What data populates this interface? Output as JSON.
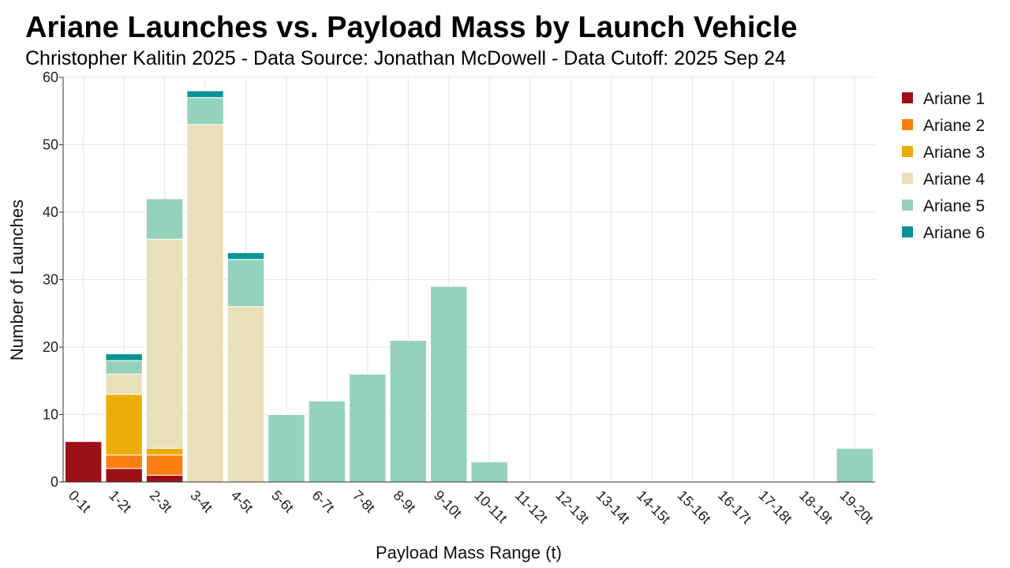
{
  "chart_data": {
    "type": "bar",
    "stacked": true,
    "title": "Ariane Launches vs. Payload Mass by Launch Vehicle",
    "subtitle": "Christopher Kalitin 2025 - Data Source: Jonathan McDowell - Data Cutoff: 2025 Sep 24",
    "xlabel": "Payload Mass Range (t)",
    "ylabel": "Number of Launches",
    "ylim": [
      0,
      60
    ],
    "yticks": [
      0,
      10,
      20,
      30,
      40,
      50,
      60
    ],
    "grid": true,
    "legend_position": "right",
    "categories": [
      "0-1t",
      "1-2t",
      "2-3t",
      "3-4t",
      "4-5t",
      "5-6t",
      "6-7t",
      "7-8t",
      "8-9t",
      "9-10t",
      "10-11t",
      "11-12t",
      "12-13t",
      "13-14t",
      "14-15t",
      "15-16t",
      "16-17t",
      "17-18t",
      "18-19t",
      "19-20t"
    ],
    "series": [
      {
        "name": "Ariane 1",
        "color": "#9b1014",
        "values": [
          6,
          2,
          1,
          0,
          0,
          0,
          0,
          0,
          0,
          0,
          0,
          0,
          0,
          0,
          0,
          0,
          0,
          0,
          0,
          0
        ]
      },
      {
        "name": "Ariane 2",
        "color": "#fb7e12",
        "values": [
          0,
          2,
          3,
          0,
          0,
          0,
          0,
          0,
          0,
          0,
          0,
          0,
          0,
          0,
          0,
          0,
          0,
          0,
          0,
          0
        ]
      },
      {
        "name": "Ariane 3",
        "color": "#edad08",
        "values": [
          0,
          9,
          1,
          0,
          0,
          0,
          0,
          0,
          0,
          0,
          0,
          0,
          0,
          0,
          0,
          0,
          0,
          0,
          0,
          0
        ]
      },
      {
        "name": "Ariane 4",
        "color": "#e9dfb8",
        "values": [
          0,
          3,
          31,
          53,
          26,
          0,
          0,
          0,
          0,
          0,
          0,
          0,
          0,
          0,
          0,
          0,
          0,
          0,
          0,
          0
        ]
      },
      {
        "name": "Ariane 5",
        "color": "#95d2bc",
        "values": [
          0,
          2,
          6,
          4,
          7,
          10,
          12,
          16,
          21,
          29,
          3,
          0,
          0,
          0,
          0,
          0,
          0,
          0,
          0,
          5
        ]
      },
      {
        "name": "Ariane 6",
        "color": "#0a9396",
        "values": [
          0,
          1,
          0,
          1,
          1,
          0,
          0,
          0,
          0,
          0,
          0,
          0,
          0,
          0,
          0,
          0,
          0,
          0,
          0,
          0
        ]
      }
    ]
  }
}
